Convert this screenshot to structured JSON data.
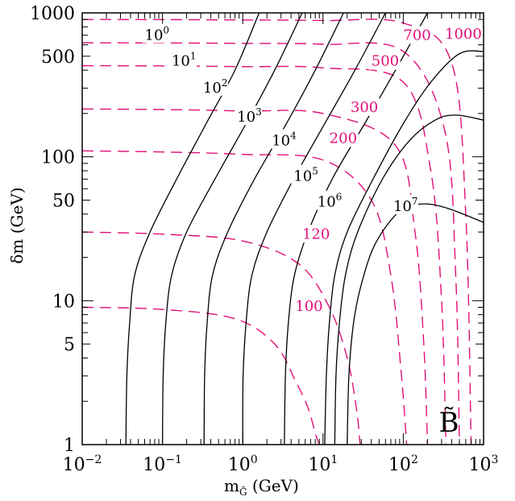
{
  "chart_data": {
    "type": "line",
    "xlabel": "m",
    "xlabel_sub": "G̃",
    "xlabel_unit": "(GeV)",
    "ylabel": "δm (GeV)",
    "xscale": "log",
    "yscale": "log",
    "xlim": [
      0.01,
      1000
    ],
    "ylim": [
      1,
      1000
    ],
    "x_ticks": [
      {
        "base": "10",
        "exp": "−2",
        "value": 0.01
      },
      {
        "base": "10",
        "exp": "−1",
        "value": 0.1
      },
      {
        "base": "10",
        "exp": "0",
        "value": 1
      },
      {
        "base": "10",
        "exp": "1",
        "value": 10
      },
      {
        "base": "10",
        "exp": "2",
        "value": 100
      },
      {
        "base": "10",
        "exp": "3",
        "value": 1000
      }
    ],
    "y_ticks": [
      {
        "text": "1",
        "value": 1
      },
      {
        "text": "5",
        "value": 5
      },
      {
        "text": "10",
        "value": 10
      },
      {
        "text": "50",
        "value": 50
      },
      {
        "text": "100",
        "value": 100
      },
      {
        "text": "500",
        "value": 500
      },
      {
        "text": "1000",
        "value": 1000
      }
    ],
    "panel_label": "B̃",
    "colors": {
      "solid": "#000000",
      "dashed": "#e0107a"
    },
    "solid_series": [
      {
        "label_base": "10",
        "label_exp": "0",
        "label_at": [
          0.06,
          650
        ],
        "x": [
          0.035,
          0.036,
          0.039,
          0.045,
          0.07,
          0.15,
          0.35,
          0.8,
          1.6
        ],
        "y": [
          1,
          3,
          7,
          15,
          30,
          70,
          170,
          400,
          1000
        ]
      },
      {
        "label_base": "10",
        "label_exp": "1",
        "label_at": [
          0.13,
          430
        ],
        "x": [
          0.1,
          0.102,
          0.11,
          0.13,
          0.2,
          0.45,
          1.1,
          2.5,
          5.5
        ],
        "y": [
          1,
          3,
          7,
          15,
          30,
          70,
          170,
          400,
          1000
        ]
      },
      {
        "label_base": "10",
        "label_exp": "2",
        "label_at": [
          0.32,
          280
        ],
        "x": [
          0.33,
          0.335,
          0.36,
          0.42,
          0.65,
          1.4,
          3.5,
          8,
          18
        ],
        "y": [
          1,
          3,
          7,
          15,
          30,
          70,
          170,
          400,
          1000
        ]
      },
      {
        "label_base": "10",
        "label_exp": "3",
        "label_at": [
          0.85,
          175
        ],
        "x": [
          1.0,
          1.01,
          1.1,
          1.3,
          2.0,
          4.3,
          10.5,
          25,
          60
        ],
        "y": [
          1,
          3,
          7,
          15,
          30,
          70,
          170,
          400,
          1000
        ]
      },
      {
        "label_base": "10",
        "label_exp": "4",
        "label_at": [
          2.3,
          120
        ],
        "x": [
          3.3,
          3.4,
          3.7,
          4.4,
          6.5,
          13,
          33,
          80,
          200
        ],
        "y": [
          1,
          3,
          7,
          15,
          30,
          70,
          170,
          400,
          1000
        ]
      },
      {
        "label_base": "10",
        "label_exp": "5",
        "label_at": [
          4.3,
          68
        ],
        "x": [
          10.5,
          11,
          12,
          14,
          20,
          42,
          100,
          220,
          500,
          1000
        ],
        "y": [
          1,
          3,
          7,
          15,
          30,
          70,
          170,
          330,
          520,
          540
        ]
      },
      {
        "label_base": "10",
        "label_exp": "6",
        "label_at": [
          8.5,
          45
        ],
        "x": [
          14,
          14.5,
          16,
          19,
          27,
          55,
          120,
          250,
          450,
          1000
        ],
        "y": [
          1,
          3,
          7,
          15,
          30,
          70,
          130,
          180,
          195,
          180
        ]
      },
      {
        "label_base": "10",
        "label_exp": "7",
        "label_at": [
          75,
          42
        ],
        "x": [
          20,
          21,
          24,
          30,
          45,
          90,
          170,
          350,
          1000
        ],
        "y": [
          1,
          3,
          7,
          13,
          25,
          42,
          47,
          44,
          35
        ]
      }
    ],
    "dashed_series": [
      {
        "label": "100",
        "label_at": [
          4.5,
          8.5
        ],
        "x": [
          0.01,
          0.1,
          0.8,
          2.5,
          4.5,
          6.5,
          8,
          9
        ],
        "y": [
          9,
          8.7,
          7.5,
          5,
          2.8,
          1.8,
          1.2,
          1
        ]
      },
      {
        "label": "120",
        "label_at": [
          5.5,
          27
        ],
        "x": [
          0.01,
          0.1,
          1,
          5,
          12,
          20,
          26,
          29
        ],
        "y": [
          30,
          29,
          26,
          18,
          9,
          4,
          1.8,
          1
        ]
      },
      {
        "label": "200",
        "label_at": [
          12,
          125
        ],
        "x": [
          0.01,
          0.1,
          1,
          10,
          40,
          70,
          95,
          110
        ],
        "y": [
          110,
          108,
          104,
          95,
          50,
          15,
          3,
          1
        ]
      },
      {
        "label": "300",
        "label_at": [
          22,
          205
        ],
        "x": [
          0.01,
          0.1,
          1,
          10,
          80,
          140,
          180,
          200
        ],
        "y": [
          215,
          213,
          208,
          200,
          120,
          30,
          5,
          1
        ]
      },
      {
        "label": "500",
        "label_at": [
          40,
          430
        ],
        "x": [
          0.01,
          0.1,
          1,
          10,
          100,
          220,
          300,
          340
        ],
        "y": [
          430,
          428,
          423,
          415,
          330,
          80,
          10,
          1
        ]
      },
      {
        "label": "700",
        "label_at": [
          100,
          650
        ],
        "x": [
          0.01,
          0.1,
          1,
          10,
          100,
          330,
          450,
          500
        ],
        "y": [
          620,
          618,
          614,
          605,
          540,
          150,
          15,
          1
        ]
      },
      {
        "label": "1000",
        "label_at": [
          330,
          660
        ],
        "x": [
          0.01,
          0.1,
          1,
          10,
          100,
          400,
          600,
          700
        ],
        "y": [
          900,
          898,
          893,
          885,
          850,
          450,
          40,
          1
        ]
      }
    ]
  }
}
